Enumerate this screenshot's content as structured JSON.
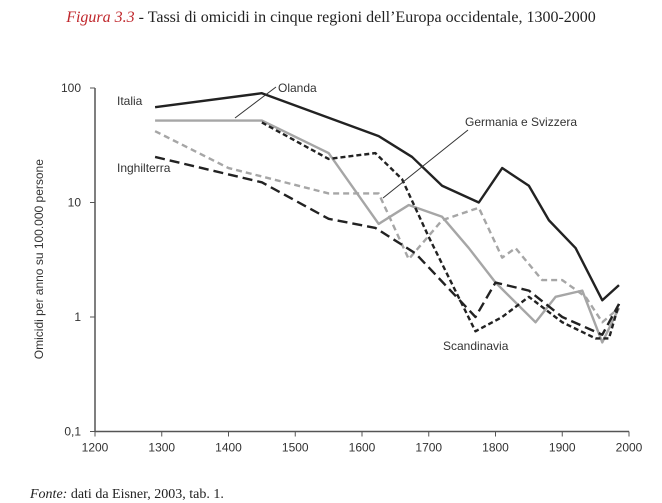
{
  "caption": {
    "figure_label": "Figura 3.3",
    "title": " - Tassi di omicidi in cinque regioni dell’Europa occidentale, 1300-2000"
  },
  "source": {
    "label": "Fonte:",
    "text": " dati da Eisner, 2003, tab. 1."
  },
  "chart_data": {
    "type": "line",
    "title": "Tassi di omicidi in cinque regioni dell’Europa occidentale, 1300-2000",
    "xlabel": "",
    "ylabel": "Omicidi per anno su 100.000 persone",
    "xlim": [
      1200,
      2000
    ],
    "ylim": [
      0.1,
      100
    ],
    "yscale": "log",
    "xticks": [
      "1200",
      "1300",
      "1400",
      "1500",
      "1600",
      "1700",
      "1800",
      "1900",
      "2000"
    ],
    "yticks": [
      "100",
      "10",
      "1",
      "0,1"
    ],
    "series": [
      {
        "name": "Italia",
        "color": "#222222",
        "dash": "",
        "x": [
          1290,
          1450,
          1550,
          1625,
          1675,
          1720,
          1775,
          1810,
          1850,
          1880,
          1920,
          1960,
          1985
        ],
        "y": [
          68,
          90,
          55,
          38,
          25,
          14,
          10,
          20,
          14,
          7,
          4,
          1.4,
          1.9
        ]
      },
      {
        "name": "Olanda",
        "color": "#a6a6a6",
        "dash": "",
        "x": [
          1290,
          1450,
          1550,
          1625,
          1670,
          1720,
          1760,
          1800,
          1860,
          1890,
          1930,
          1960,
          1985
        ],
        "y": [
          52,
          52,
          27,
          6.5,
          9.5,
          7.5,
          4,
          2,
          0.9,
          1.5,
          1.7,
          0.6,
          1.2
        ]
      },
      {
        "name": "Germania e Svizzera",
        "color": "#a6a6a6",
        "dash": "6,4",
        "x": [
          1290,
          1400,
          1550,
          1625,
          1670,
          1720,
          1775,
          1810,
          1830,
          1870,
          1900,
          1935,
          1960,
          1985
        ],
        "y": [
          42,
          20,
          12,
          12,
          3.2,
          7,
          9,
          3.3,
          4,
          2.1,
          2.1,
          1.5,
          0.9,
          1.2
        ]
      },
      {
        "name": "Scandinavia",
        "color": "#222222",
        "dash": "5,3",
        "x": [
          1450,
          1550,
          1620,
          1660,
          1700,
          1770,
          1810,
          1850,
          1900,
          1950,
          1970,
          1985
        ],
        "y": [
          50,
          24,
          27,
          16,
          5,
          0.75,
          1,
          1.5,
          0.9,
          0.65,
          0.65,
          1.3
        ]
      },
      {
        "name": "Inghilterra",
        "color": "#222222",
        "dash": "10,5",
        "x": [
          1290,
          1450,
          1550,
          1620,
          1680,
          1770,
          1800,
          1850,
          1900,
          1960,
          1985
        ],
        "y": [
          25,
          15,
          7.2,
          6,
          3.6,
          1,
          2,
          1.7,
          1,
          0.7,
          1.3
        ]
      }
    ]
  }
}
